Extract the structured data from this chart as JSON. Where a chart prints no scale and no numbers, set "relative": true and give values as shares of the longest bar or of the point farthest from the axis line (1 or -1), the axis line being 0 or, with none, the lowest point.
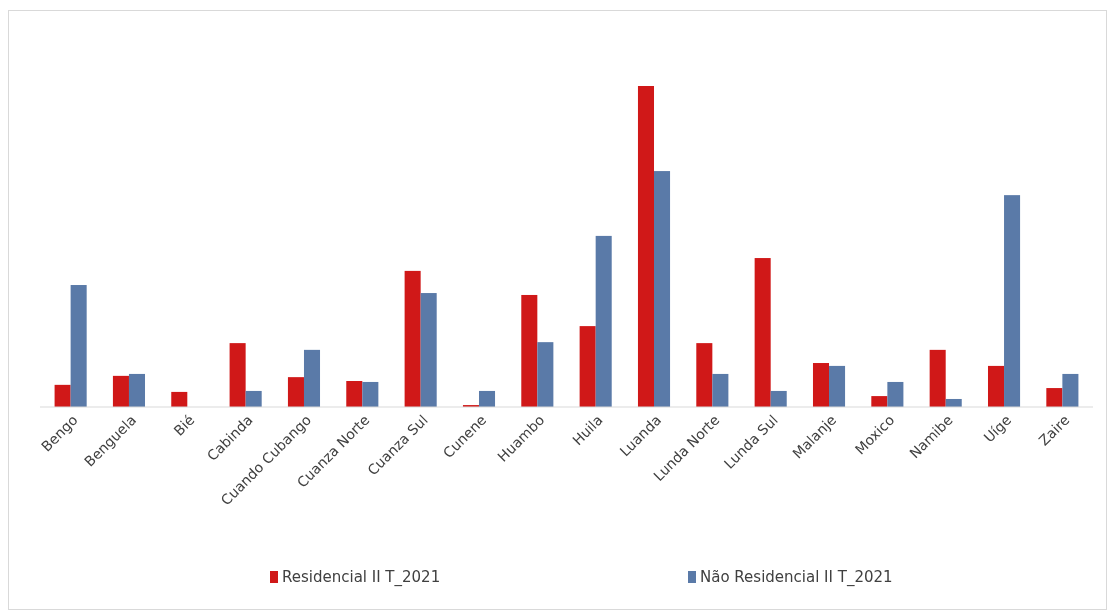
{
  "chart_data": {
    "type": "bar",
    "relative": true,
    "legend": "bottom",
    "categories": [
      "Bengo",
      "Benguela",
      "Bié",
      "Cabinda",
      "Cuando Cubango",
      "Cuanza Norte",
      "Cuanza Sul",
      "Cunene",
      "Huambo",
      "Huila",
      "Luanda",
      "Lunda Norte",
      "Lunda Sul",
      "Malanje",
      "Moxico",
      "Namibe",
      "Uíge",
      "Zaire"
    ],
    "series": [
      {
        "name": "Residencial II T_2021",
        "color": "#d01818",
        "values": [
          0.069,
          0.097,
          0.047,
          0.199,
          0.093,
          0.081,
          0.424,
          0.006,
          0.349,
          0.252,
          1,
          0.199,
          0.464,
          0.137,
          0.034,
          0.178,
          0.128,
          0.059
        ]
      },
      {
        "name": "Não Residencial II T_2021",
        "color": "#5a7aa8",
        "values": [
          0.38,
          0.103,
          0,
          0.05,
          0.178,
          0.078,
          0.355,
          0.05,
          0.202,
          0.533,
          0.735,
          0.103,
          0.05,
          0.128,
          0.078,
          0.025,
          0.66,
          0.103
        ]
      }
    ]
  }
}
